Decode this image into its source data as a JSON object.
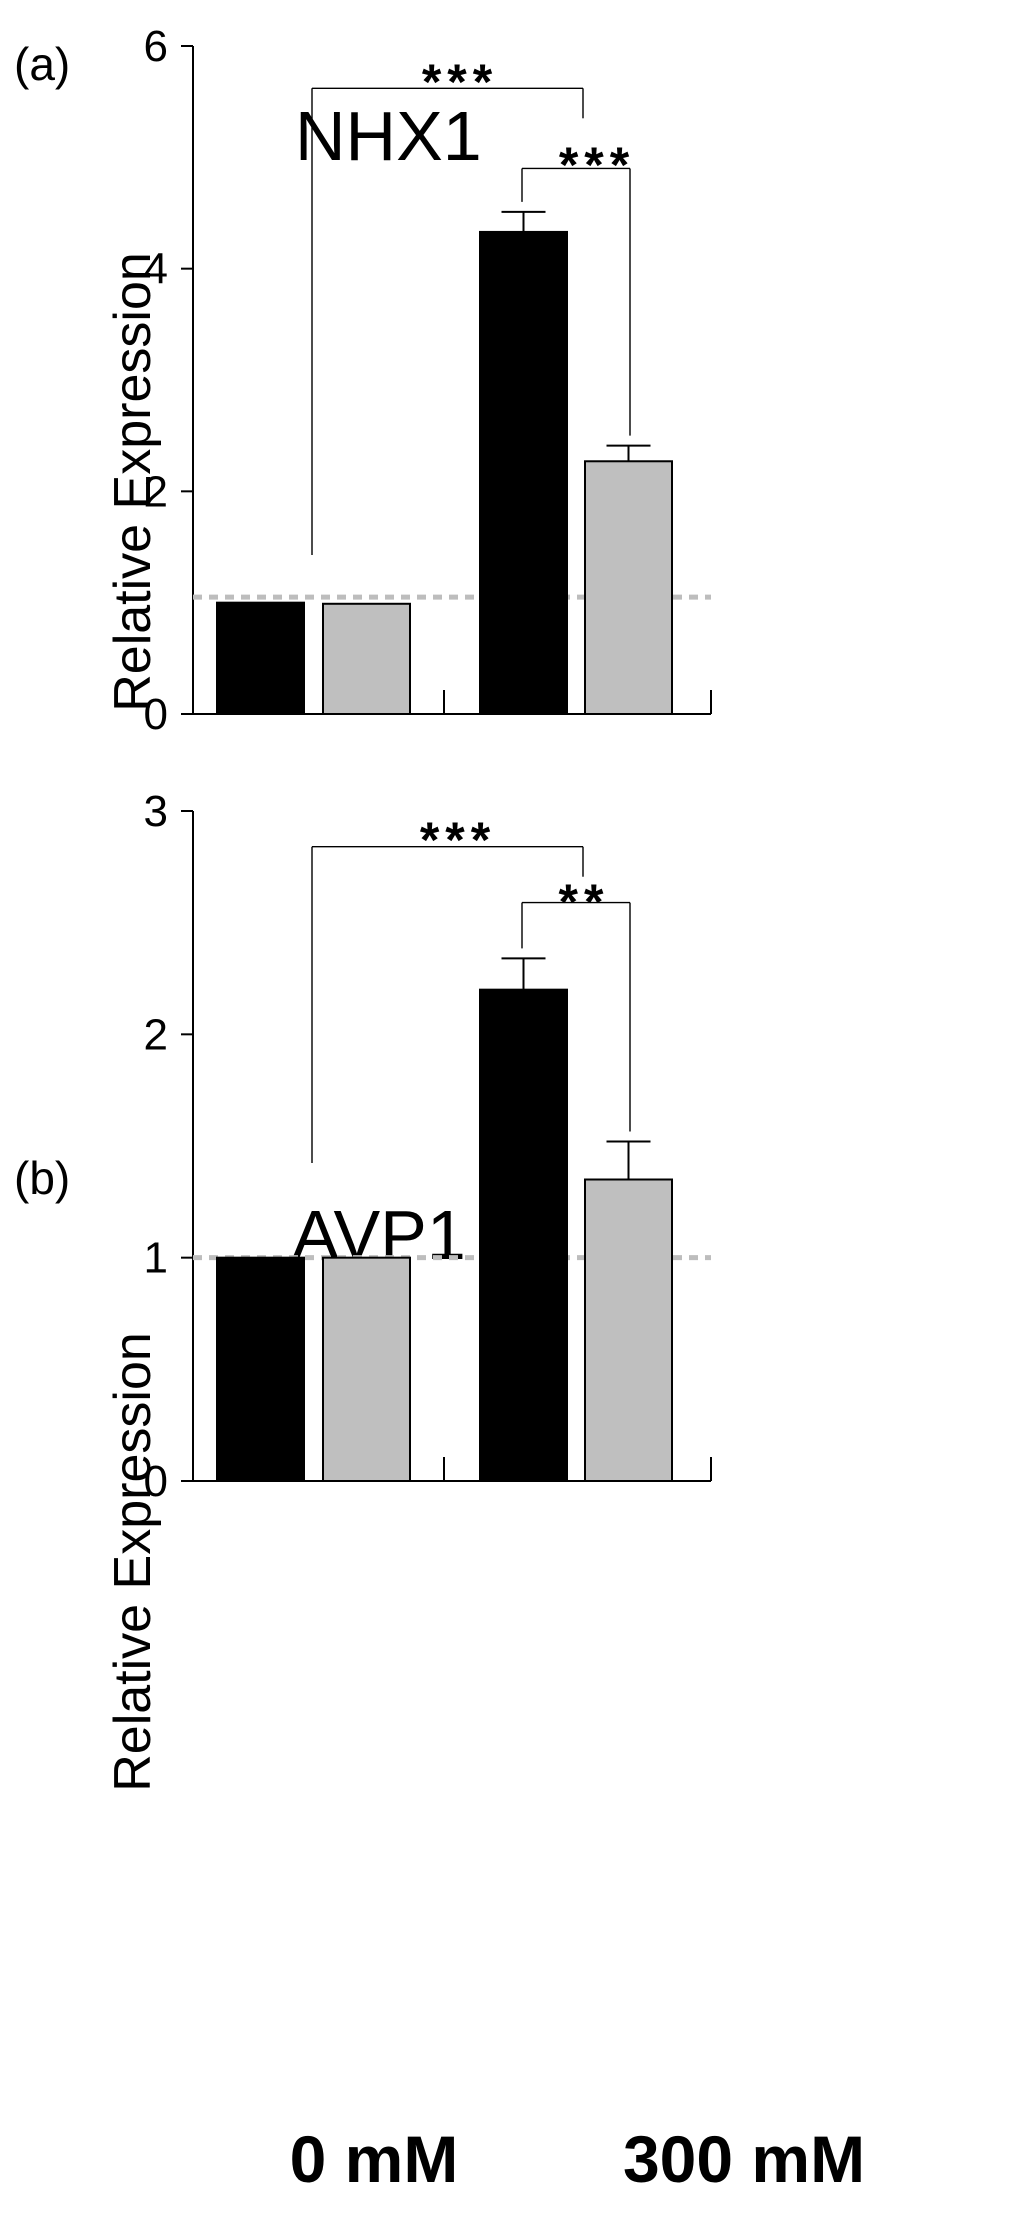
{
  "chart_data": [
    {
      "type": "bar",
      "panel_label": "(a)",
      "title": "NHX1",
      "ylabel": "Relative Expression",
      "ylim": [
        0,
        6
      ],
      "yticks": [
        0,
        2,
        4,
        6
      ],
      "categories": [
        "0 mM",
        "300 mM"
      ],
      "series": [
        {
          "name": "black",
          "color": "#000000",
          "values": [
            1.0,
            4.33
          ],
          "errors": [
            0.0,
            0.18
          ]
        },
        {
          "name": "grey",
          "color": "#bfbfbf",
          "values": [
            0.99,
            2.27
          ],
          "errors": [
            0.0,
            0.14
          ]
        }
      ],
      "reference_line": 1.05,
      "significance": [
        {
          "label": "***",
          "from": "0 mM",
          "to": "300 mM black"
        },
        {
          "label": "***",
          "from": "300 mM black",
          "to": "300 mM grey"
        }
      ]
    },
    {
      "type": "bar",
      "panel_label": "(b)",
      "title": "AVP1",
      "ylabel": "Relative Expression",
      "ylim": [
        0,
        3
      ],
      "yticks": [
        0,
        1,
        2,
        3
      ],
      "categories": [
        "0 mM",
        "300 mM"
      ],
      "series": [
        {
          "name": "black",
          "color": "#000000",
          "values": [
            1.0,
            2.2
          ],
          "errors": [
            0.0,
            0.14
          ]
        },
        {
          "name": "grey",
          "color": "#bfbfbf",
          "values": [
            1.0,
            1.35
          ],
          "errors": [
            0.0,
            0.17
          ]
        }
      ],
      "reference_line": 1.0,
      "significance": [
        {
          "label": "***",
          "from": "0 mM",
          "to": "300 mM black"
        },
        {
          "label": "**",
          "from": "300 mM black",
          "to": "300 mM grey"
        }
      ]
    }
  ],
  "x_category_labels": [
    "0 mM",
    "300 mM"
  ]
}
